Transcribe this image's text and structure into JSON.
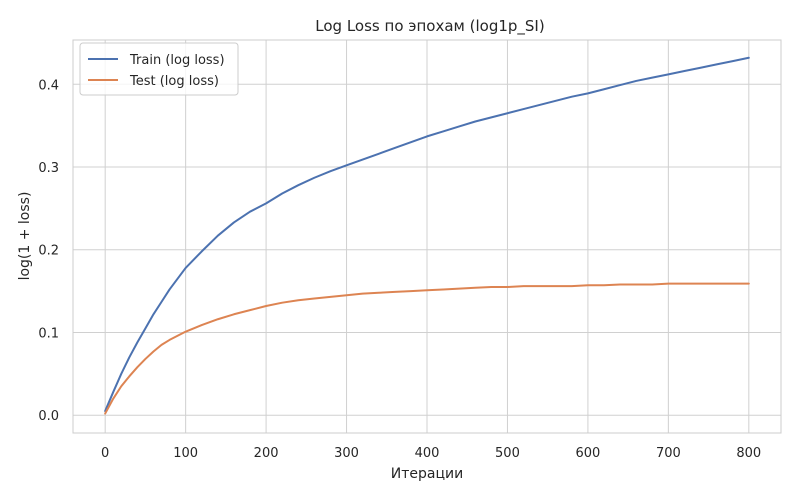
{
  "chart_data": {
    "type": "line",
    "title": "Log Loss по эпохам (log1p_SI)",
    "xlabel": "Итерации",
    "ylabel": "log(1 + loss)",
    "xlim": [
      -40,
      840
    ],
    "ylim": [
      -0.0215,
      0.4535
    ],
    "xticks": [
      0,
      100,
      200,
      300,
      400,
      500,
      600,
      700,
      800
    ],
    "yticks": [
      0.0,
      0.1,
      0.2,
      0.3,
      0.4
    ],
    "ytick_labels": [
      "0.0",
      "0.1",
      "0.2",
      "0.3",
      "0.4"
    ],
    "grid": true,
    "legend_position": "top-left",
    "series": [
      {
        "name": "Train (log loss)",
        "color": "#4c72b0",
        "x": [
          0,
          10,
          20,
          30,
          40,
          50,
          60,
          70,
          80,
          90,
          100,
          120,
          140,
          160,
          180,
          200,
          220,
          240,
          260,
          280,
          300,
          320,
          340,
          360,
          380,
          400,
          420,
          440,
          460,
          480,
          500,
          520,
          540,
          560,
          580,
          600,
          620,
          640,
          660,
          680,
          700,
          720,
          740,
          760,
          780,
          800
        ],
        "y": [
          0.005,
          0.028,
          0.05,
          0.07,
          0.088,
          0.105,
          0.122,
          0.137,
          0.152,
          0.165,
          0.178,
          0.198,
          0.217,
          0.233,
          0.246,
          0.256,
          0.268,
          0.278,
          0.287,
          0.295,
          0.302,
          0.309,
          0.316,
          0.323,
          0.33,
          0.337,
          0.343,
          0.349,
          0.355,
          0.36,
          0.365,
          0.37,
          0.375,
          0.38,
          0.385,
          0.389,
          0.394,
          0.399,
          0.404,
          0.408,
          0.412,
          0.416,
          0.42,
          0.424,
          0.428,
          0.432
        ]
      },
      {
        "name": "Test (log loss)",
        "color": "#dd8452",
        "x": [
          0,
          10,
          20,
          30,
          40,
          50,
          60,
          70,
          80,
          90,
          100,
          120,
          140,
          160,
          180,
          200,
          220,
          240,
          260,
          280,
          300,
          320,
          340,
          360,
          380,
          400,
          420,
          440,
          460,
          480,
          500,
          520,
          540,
          560,
          580,
          600,
          620,
          640,
          660,
          680,
          700,
          720,
          740,
          760,
          780,
          800
        ],
        "y": [
          0.002,
          0.02,
          0.035,
          0.047,
          0.058,
          0.068,
          0.077,
          0.085,
          0.091,
          0.096,
          0.101,
          0.109,
          0.116,
          0.122,
          0.127,
          0.132,
          0.136,
          0.139,
          0.141,
          0.143,
          0.145,
          0.147,
          0.148,
          0.149,
          0.15,
          0.151,
          0.152,
          0.153,
          0.154,
          0.155,
          0.155,
          0.156,
          0.156,
          0.156,
          0.156,
          0.157,
          0.157,
          0.158,
          0.158,
          0.158,
          0.159,
          0.159,
          0.159,
          0.159,
          0.159,
          0.159
        ]
      }
    ]
  }
}
